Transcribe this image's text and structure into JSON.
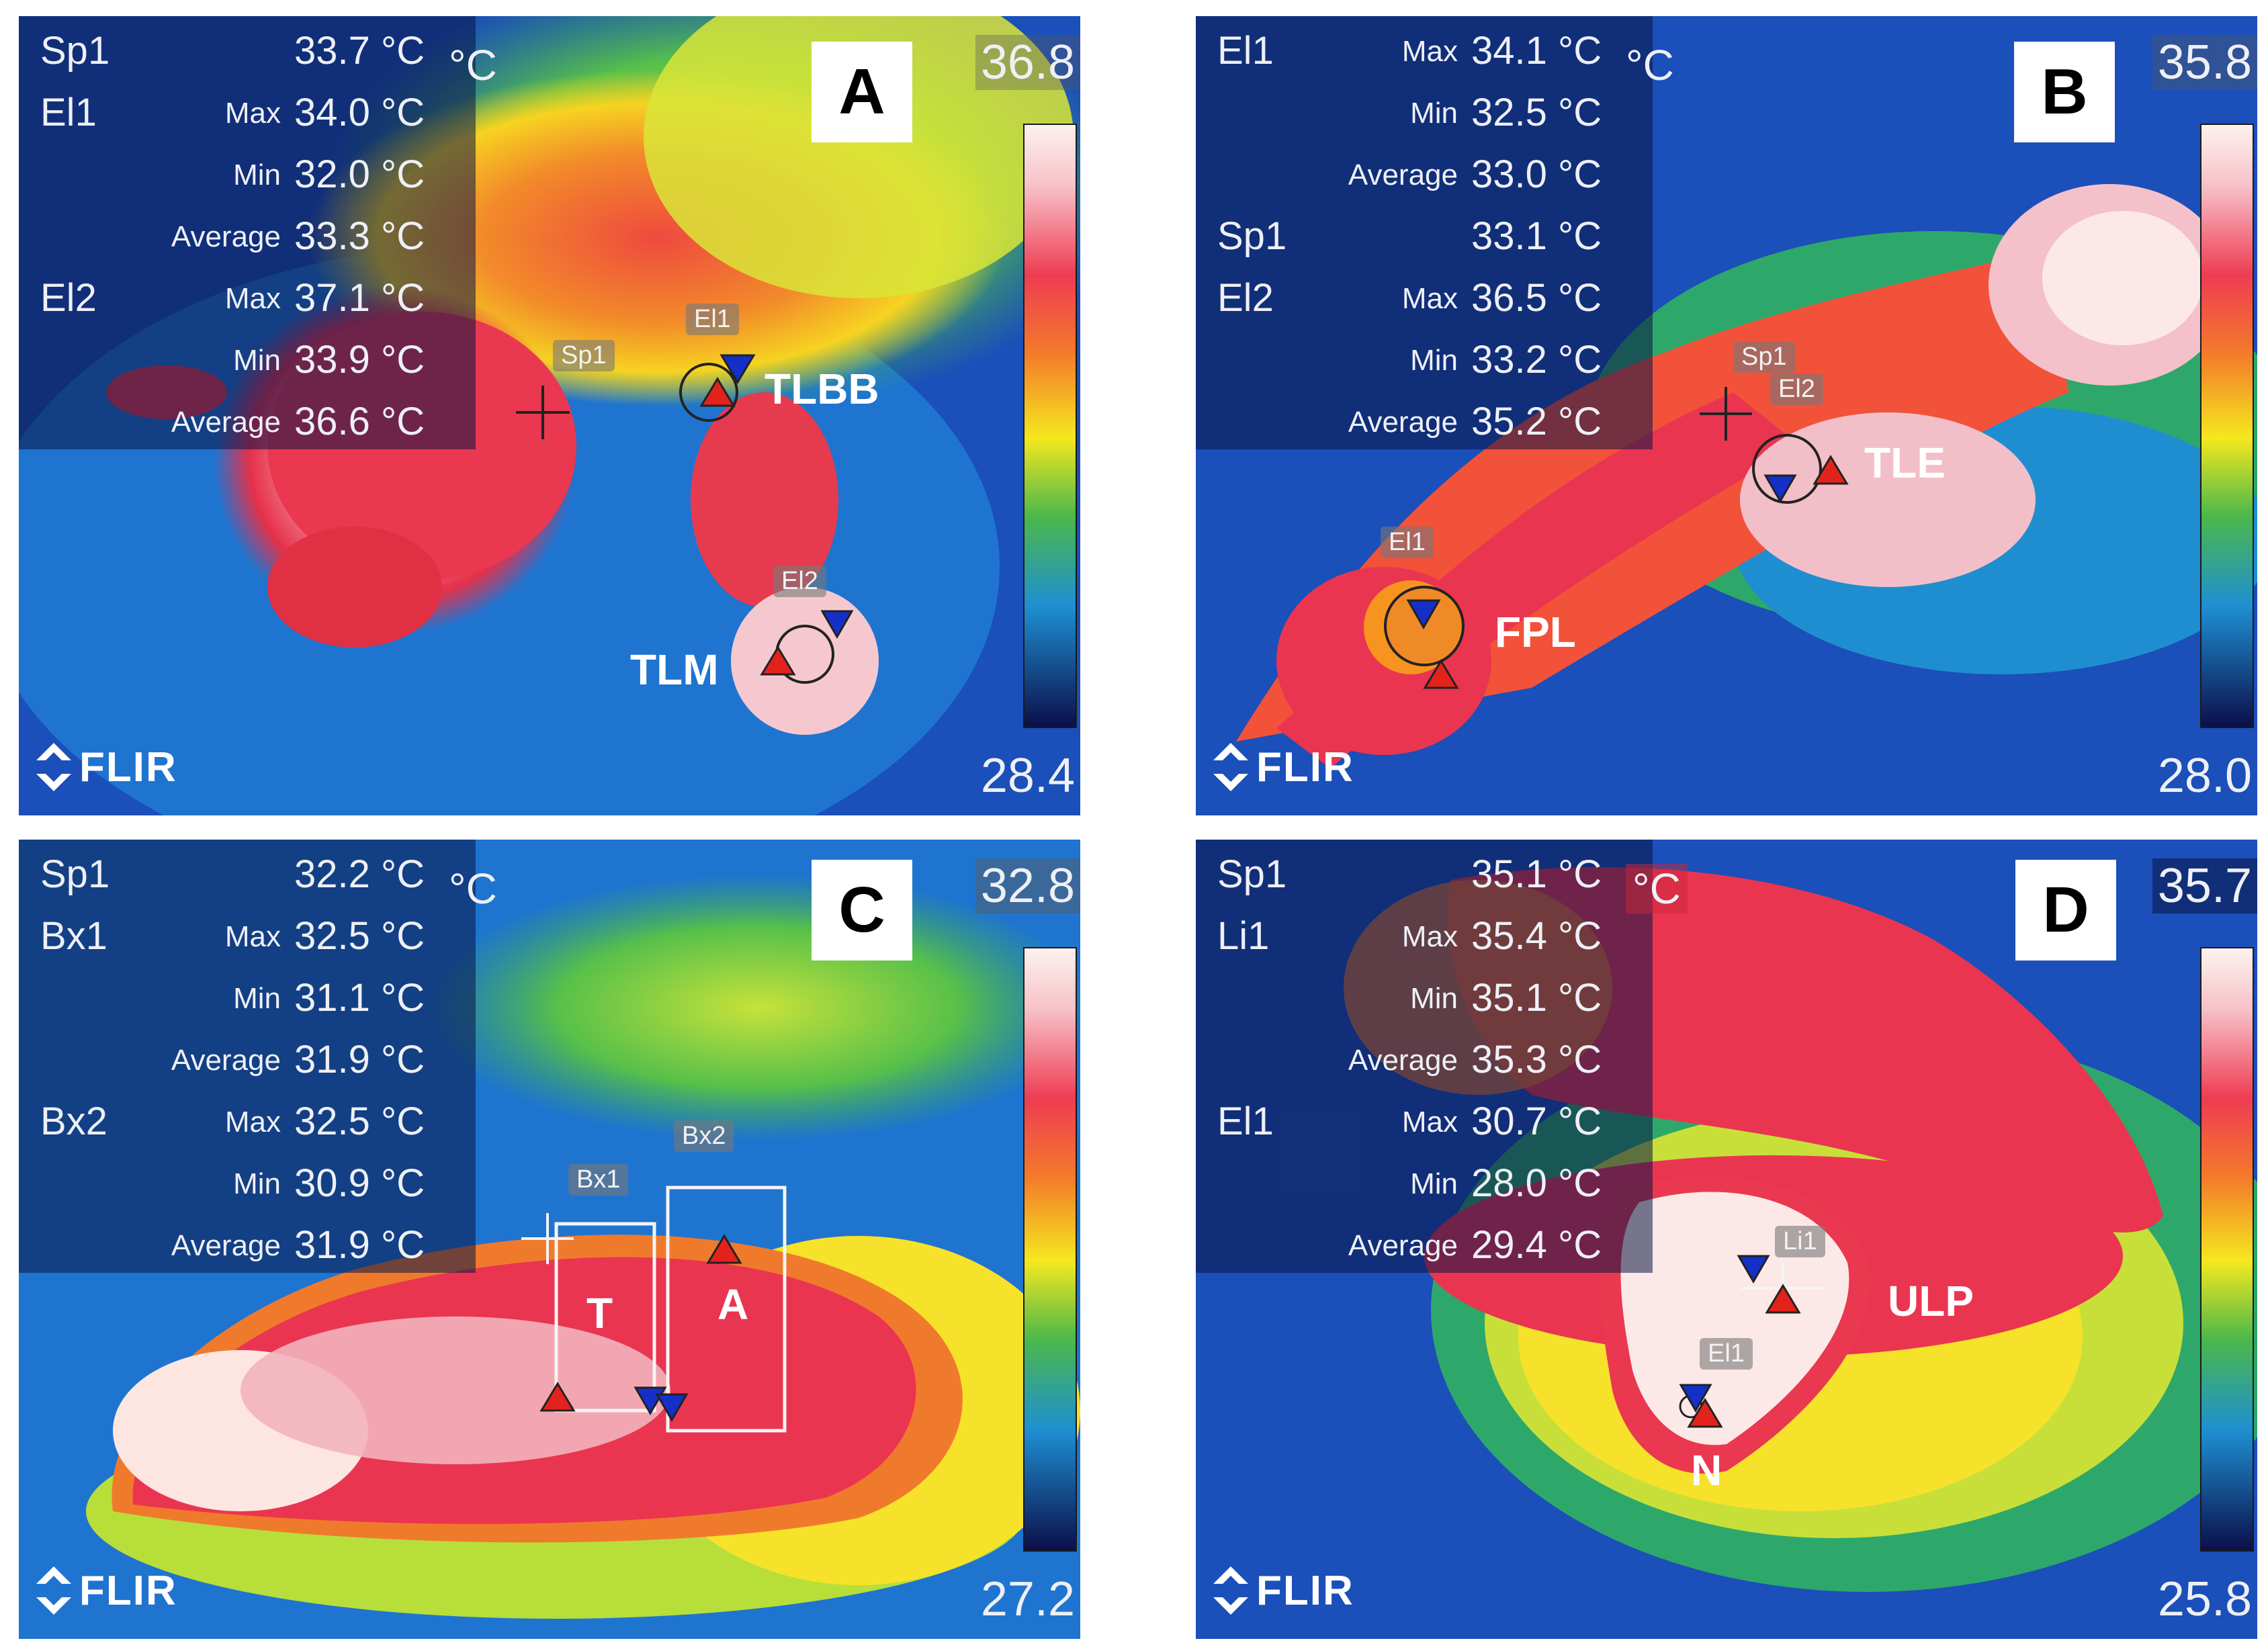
{
  "unit_symbol": "°C",
  "logo_text": "FLIR",
  "colors": {
    "tri_max": "#e3231b",
    "tri_min": "#1430c8",
    "readout_bg": "#0a1446"
  },
  "panels": {
    "A": {
      "letter": "A",
      "scale_max": "36.8",
      "scale_min": "28.4",
      "readouts": [
        {
          "name": "Sp1",
          "stat": "",
          "value": "33.7 °C"
        },
        {
          "name": "El1",
          "stat": "Max",
          "value": "34.0 °C"
        },
        {
          "name": "",
          "stat": "Min",
          "value": "32.0 °C"
        },
        {
          "name": "",
          "stat": "Average",
          "value": "33.3 °C"
        },
        {
          "name": "El2",
          "stat": "Max",
          "value": "37.1 °C"
        },
        {
          "name": "",
          "stat": "Min",
          "value": "33.9 °C"
        },
        {
          "name": "",
          "stat": "Average",
          "value": "36.6 °C"
        }
      ],
      "tags": {
        "sp1": "Sp1",
        "el1": "El1",
        "el2": "El2"
      },
      "sites": {
        "tlbb": "TLBB",
        "tlm": "TLM"
      }
    },
    "B": {
      "letter": "B",
      "scale_max": "35.8",
      "scale_min": "28.0",
      "readouts": [
        {
          "name": "El1",
          "stat": "Max",
          "value": "34.1 °C"
        },
        {
          "name": "",
          "stat": "Min",
          "value": "32.5 °C"
        },
        {
          "name": "",
          "stat": "Average",
          "value": "33.0 °C"
        },
        {
          "name": "Sp1",
          "stat": "",
          "value": "33.1 °C"
        },
        {
          "name": "El2",
          "stat": "Max",
          "value": "36.5 °C"
        },
        {
          "name": "",
          "stat": "Min",
          "value": "33.2 °C"
        },
        {
          "name": "",
          "stat": "Average",
          "value": "35.2 °C"
        }
      ],
      "tags": {
        "sp1": "Sp1",
        "el2": "El2",
        "el1": "El1"
      },
      "sites": {
        "tle": "TLE",
        "fpl": "FPL"
      }
    },
    "C": {
      "letter": "C",
      "scale_max": "32.8",
      "scale_min": "27.2",
      "readouts": [
        {
          "name": "Sp1",
          "stat": "",
          "value": "32.2 °C"
        },
        {
          "name": "Bx1",
          "stat": "Max",
          "value": "32.5 °C"
        },
        {
          "name": "",
          "stat": "Min",
          "value": "31.1 °C"
        },
        {
          "name": "",
          "stat": "Average",
          "value": "31.9 °C"
        },
        {
          "name": "Bx2",
          "stat": "Max",
          "value": "32.5 °C"
        },
        {
          "name": "",
          "stat": "Min",
          "value": "30.9 °C"
        },
        {
          "name": "",
          "stat": "Average",
          "value": "31.9 °C"
        }
      ],
      "tags": {
        "bx1": "Bx1",
        "bx2": "Bx2"
      },
      "sites": {
        "t": "T",
        "a": "A"
      }
    },
    "D": {
      "letter": "D",
      "scale_max": "35.7",
      "scale_min": "25.8",
      "readouts": [
        {
          "name": "Sp1",
          "stat": "",
          "value": "35.1 °C"
        },
        {
          "name": "Li1",
          "stat": "Max",
          "value": "35.4 °C"
        },
        {
          "name": "",
          "stat": "Min",
          "value": "35.1 °C"
        },
        {
          "name": "",
          "stat": "Average",
          "value": "35.3 °C"
        },
        {
          "name": "El1",
          "stat": "Max",
          "value": "30.7 °C"
        },
        {
          "name": "",
          "stat": "Min",
          "value": "28.0 °C"
        },
        {
          "name": "",
          "stat": "Average",
          "value": "29.4 °C"
        }
      ],
      "tags": {
        "li1": "Li1",
        "el1": "El1"
      },
      "sites": {
        "ulp": "ULP",
        "n": "N"
      }
    }
  }
}
